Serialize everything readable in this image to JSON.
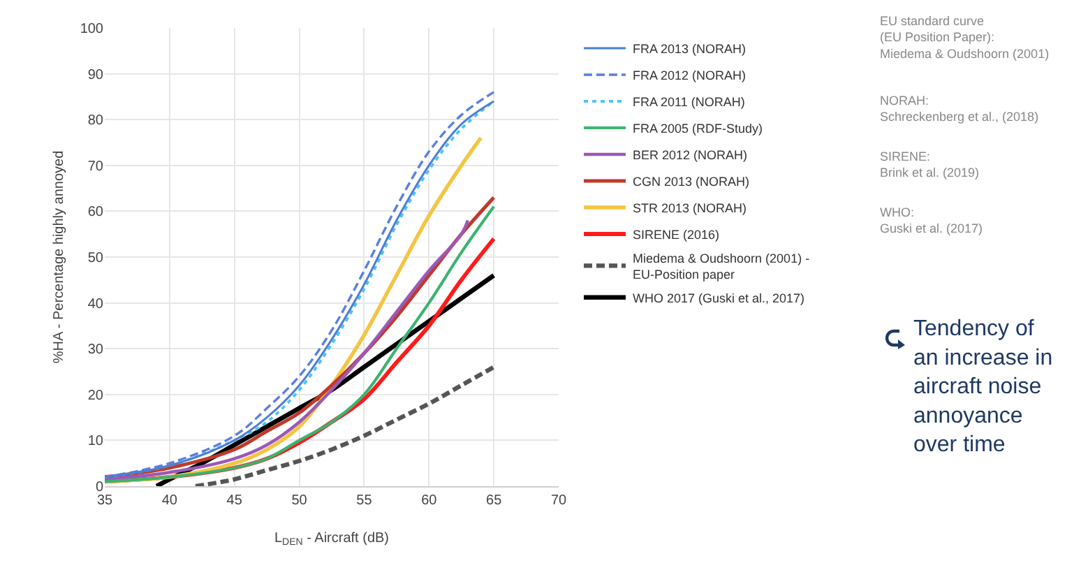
{
  "chart_data": {
    "type": "line",
    "xlabel": "L$_{DEN}$ - Aircraft (dB)",
    "ylabel": "%HA - Percentage highly annoyed",
    "xlim": [
      35,
      70
    ],
    "xticks": [
      35,
      40,
      45,
      50,
      55,
      60,
      65,
      70
    ],
    "ylim": [
      0,
      100
    ],
    "yticks": [
      0,
      10,
      20,
      30,
      40,
      50,
      60,
      70,
      80,
      90,
      100
    ],
    "grid": true,
    "legend": "right",
    "marker": "none",
    "series": [
      {
        "name": "FRA 2013 (NORAH)",
        "color": "#4a7fd6",
        "line_style": "solid",
        "x": [
          35,
          40,
          45,
          47.5,
          50,
          52.5,
          55,
          57.5,
          60,
          62.5,
          65
        ],
        "values": [
          2,
          4.5,
          10,
          15,
          22,
          32,
          44,
          58,
          70,
          79,
          84
        ]
      },
      {
        "name": "FRA 2012 (NORAH)",
        "color": "#5b7fe0",
        "line_style": "dashed",
        "x": [
          35,
          40,
          45,
          47.5,
          50,
          52.5,
          55,
          57.5,
          60,
          62.5,
          65
        ],
        "values": [
          2,
          5,
          11,
          17,
          24,
          34,
          47,
          61,
          73,
          81,
          86
        ]
      },
      {
        "name": "FRA 2011 (NORAH)",
        "color": "#4fc3f7",
        "line_style": "dotted",
        "x": [
          35,
          40,
          45,
          47.5,
          50,
          52.5,
          55,
          57.5,
          60,
          62.5,
          65
        ],
        "values": [
          2,
          4.5,
          10,
          14,
          21,
          31,
          43,
          57,
          69,
          78,
          84
        ]
      },
      {
        "name": "FRA 2005 (RDF-Study)",
        "color": "#3cb371",
        "line_style": "solid",
        "x": [
          35,
          40,
          45,
          47.5,
          50,
          52.5,
          55,
          57.5,
          60,
          62.5,
          65
        ],
        "values": [
          1,
          2,
          4,
          6,
          10,
          14,
          20,
          30,
          40,
          51,
          61
        ]
      },
      {
        "name": "BER 2012 (NORAH)",
        "color": "#9b59b6",
        "line_style": "solid",
        "x": [
          35,
          40,
          45,
          47.5,
          50,
          52.5,
          55,
          57.5,
          60,
          62.5,
          63
        ],
        "values": [
          1.5,
          3,
          6,
          9,
          14,
          21,
          29,
          38,
          47,
          55,
          58
        ]
      },
      {
        "name": "CGN 2013 (NORAH)",
        "color": "#c0392b",
        "line_style": "solid",
        "x": [
          35,
          40,
          45,
          47.5,
          50,
          52.5,
          55,
          57.5,
          60,
          62.5,
          65
        ],
        "values": [
          2,
          4,
          8,
          12,
          16,
          22,
          29,
          37,
          46,
          55,
          63
        ]
      },
      {
        "name": "STR 2013 (NORAH)",
        "color": "#f4c542",
        "line_style": "solid",
        "x": [
          35,
          40,
          45,
          47.5,
          50,
          52.5,
          55,
          57.5,
          60,
          62.5,
          64
        ],
        "values": [
          1,
          2,
          5,
          8,
          13,
          22,
          33,
          46,
          59,
          70,
          76
        ]
      },
      {
        "name": "SIRENE (2016)",
        "color": "#ff1a1a",
        "line_style": "solid",
        "x": [
          35,
          40,
          45,
          47.5,
          50,
          52.5,
          55,
          57.5,
          60,
          62.5,
          65
        ],
        "values": [
          1,
          2,
          4,
          6,
          9.5,
          14,
          19,
          27,
          35,
          45,
          54
        ]
      },
      {
        "name": "Miedema & Oudshoorn (2001) -\nEU-Position paper",
        "color": "#555555",
        "line_style": "dashed",
        "x": [
          42,
          45,
          47.5,
          50,
          52.5,
          55,
          57.5,
          60,
          62.5,
          65
        ],
        "values": [
          0,
          1.5,
          3.5,
          5.5,
          8,
          11,
          14.5,
          18,
          22,
          26
        ]
      },
      {
        "name": "WHO 2017 (Guski et al., 2017)",
        "color": "#000000",
        "line_style": "solid",
        "x": [
          39,
          40,
          42.5,
          45,
          47.5,
          50,
          52.5,
          55,
          57.5,
          60,
          62.5,
          65
        ],
        "values": [
          0,
          1.5,
          5,
          9,
          13,
          17,
          21,
          26,
          31,
          36,
          41,
          46
        ]
      }
    ],
    "annotations": [
      "EU standard curve\n(EU Position Paper):\nMiedema & Oudshoorn (2001)",
      "NORAH:\nSchreckenberg et al., (2018)",
      "SIRENE:\nBrink et al. (2019)",
      "WHO:\nGuski et al. (2017)",
      "Tendency of\nan increase in\naircraft noise\nannoyance\nover time"
    ]
  }
}
